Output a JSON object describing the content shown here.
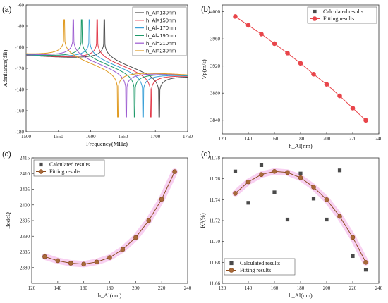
{
  "colors": {
    "calc": "#4a4a4a",
    "fit_b": "#e8454a",
    "fit_cd": "#8b4a1c",
    "fit_cd_marker": "#a86a3a",
    "glow": "#f7c8ee",
    "axes": "#333333"
  },
  "chart_data": [
    {
      "panel_label": "(a)",
      "type": "line",
      "xlabel": "Frequency(MHz)",
      "ylabel": "Admitance(dB)",
      "xlim": [
        1500,
        1750
      ],
      "ylim": [
        -180,
        -60
      ],
      "xticks": [
        1500,
        1550,
        1600,
        1650,
        1700,
        1750
      ],
      "yticks": [
        -180,
        -160,
        -140,
        -120,
        -100,
        -80,
        -60
      ],
      "legend_position": "top-right",
      "series": [
        {
          "name": "h_Al=130nm",
          "color": "#4d4d4d",
          "fr": 1621,
          "fa": 1706
        },
        {
          "name": "h_Al=150nm",
          "color": "#e23b4b",
          "fr": 1610,
          "fa": 1693
        },
        {
          "name": "h_Al=170nm",
          "color": "#3aa0d8",
          "fr": 1598,
          "fa": 1681
        },
        {
          "name": "h_Al=190nm",
          "color": "#1f9a6a",
          "fr": 1586,
          "fa": 1668
        },
        {
          "name": "h_Al=210nm",
          "color": "#9b59d0",
          "fr": 1573,
          "fa": 1655
        },
        {
          "name": "h_Al=230nm",
          "color": "#e09a20",
          "fr": 1559,
          "fa": 1642
        }
      ]
    },
    {
      "panel_label": "(b)",
      "type": "scatter",
      "xlabel": "h_Al(nm)",
      "ylabel": "Vp(m/s)",
      "xlim": [
        120,
        240
      ],
      "ylim": [
        3820,
        4010
      ],
      "xticks": [
        120,
        140,
        160,
        180,
        200,
        220,
        240
      ],
      "yticks": [
        3840,
        3880,
        3920,
        3960,
        4000
      ],
      "legend_position": "top-right",
      "legend": [
        "Calculated results",
        "Fitting results"
      ],
      "x": [
        130,
        140,
        150,
        160,
        170,
        180,
        190,
        200,
        210,
        220,
        230
      ],
      "calculated": [
        3993,
        3980,
        3967,
        3953,
        3939,
        3924,
        3908,
        3893,
        3876,
        3858,
        3840
      ],
      "fitting": [
        3993,
        3980,
        3967,
        3953,
        3939,
        3924,
        3908,
        3893,
        3876,
        3858,
        3840
      ]
    },
    {
      "panel_label": "(c)",
      "type": "scatter",
      "xlabel": "h_Al(nm)",
      "ylabel": "BodeQ",
      "xlim": [
        120,
        240
      ],
      "ylim": [
        2375,
        2415
      ],
      "xticks": [
        120,
        140,
        160,
        180,
        200,
        220,
        240
      ],
      "yticks": [
        2380,
        2385,
        2390,
        2395,
        2400,
        2405,
        2410,
        2415
      ],
      "legend_position": "top-left",
      "legend": [
        "Calculated results",
        "Fitting results"
      ],
      "x": [
        130,
        140,
        150,
        160,
        170,
        180,
        190,
        200,
        210,
        220,
        230
      ],
      "calculated": [
        2383.5,
        2382.2,
        2381.4,
        2381.1,
        2381.8,
        2383.2,
        2385.8,
        2389.6,
        2395.0,
        2401.8,
        2410.6
      ],
      "fitting": [
        2383.5,
        2382.2,
        2381.4,
        2381.1,
        2381.8,
        2383.2,
        2385.8,
        2389.6,
        2395.0,
        2401.8,
        2410.6
      ]
    },
    {
      "panel_label": "(d)",
      "type": "scatter",
      "xlabel": "h_Al(nm)",
      "ylabel": "K²(%)",
      "xlim": [
        120,
        240
      ],
      "ylim": [
        11.66,
        11.78
      ],
      "xticks": [
        120,
        140,
        160,
        180,
        200,
        220,
        240
      ],
      "yticks": [
        11.66,
        11.68,
        11.7,
        11.72,
        11.74,
        11.76,
        11.78
      ],
      "legend_position": "bottom-left",
      "legend": [
        "Calculated results",
        "Fitting results"
      ],
      "x": [
        130,
        140,
        150,
        160,
        170,
        180,
        190,
        200,
        210,
        220,
        230
      ],
      "calculated": [
        11.767,
        11.737,
        11.773,
        11.747,
        11.721,
        11.765,
        11.741,
        11.721,
        11.768,
        11.686,
        11.673
      ],
      "fitting": [
        11.746,
        11.757,
        11.764,
        11.767,
        11.766,
        11.761,
        11.752,
        11.74,
        11.724,
        11.704,
        11.68
      ]
    }
  ]
}
